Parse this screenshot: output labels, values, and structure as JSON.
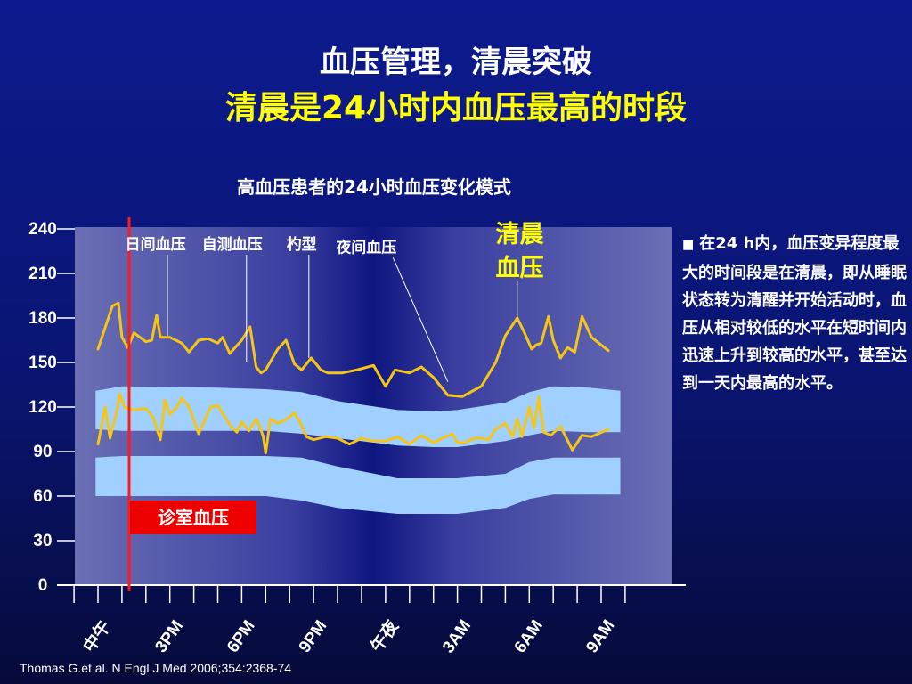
{
  "slide": {
    "title": "血压管理，清晨突破",
    "subtitle": "清晨是24小时内血压最高的时段",
    "citation": "Thomas G.et al. N Engl J Med 2006;354:2368-74"
  },
  "side_note": {
    "bullet": "■",
    "text": "在24 h内，血压变异程度最大的时间段是在清晨，即从睡眠状态转为清醒并开始活动时，血压从相对较低的水平在短时间内迅速上升到较高的水平，甚至达到一天内最高的水平。"
  },
  "chart_data": {
    "type": "line",
    "title": "高血压患者的24小时血压变化模式",
    "ylim": [
      0,
      240
    ],
    "y_ticks": [
      "240",
      "210",
      "180",
      "150",
      "120",
      "90",
      "60",
      "30",
      "0"
    ],
    "x_range_hours": [
      12,
      33
    ],
    "x_ticks": [
      {
        "hour": 12,
        "label": "中午"
      },
      {
        "hour": 15,
        "label": "3PM"
      },
      {
        "hour": 18,
        "label": "6PM"
      },
      {
        "hour": 21,
        "label": "9PM"
      },
      {
        "hour": 24,
        "label": "午夜"
      },
      {
        "hour": 27,
        "label": "3AM"
      },
      {
        "hour": 30,
        "label": "6AM"
      },
      {
        "hour": 33,
        "label": "9AM"
      }
    ],
    "series": [
      {
        "kind": "systolic",
        "x": [
          12.0,
          12.6,
          12.85,
          13.0,
          13.25,
          13.5,
          14.0,
          14.25,
          14.45,
          14.6,
          15.0,
          15.5,
          15.8,
          16.2,
          16.6,
          17.0,
          17.2,
          17.5,
          18.0,
          18.35,
          18.6,
          18.8,
          19.0,
          19.5,
          19.85,
          20.2,
          20.5,
          20.9,
          21.3,
          21.6,
          22.2,
          22.8,
          23.5,
          24.0,
          24.4,
          25.0,
          25.5,
          26.0,
          26.6,
          27.2,
          28.0,
          28.6,
          29.0,
          29.5,
          29.8,
          30.1,
          30.3,
          30.5,
          30.8,
          31.0,
          31.3,
          31.6,
          31.9,
          32.2,
          32.6,
          33.3
        ],
        "values": [
          159,
          188,
          190,
          167,
          160,
          170,
          164,
          165,
          182,
          167,
          167,
          163,
          157,
          165,
          166,
          163,
          167,
          156,
          165,
          174,
          147,
          143,
          145,
          159,
          165,
          149,
          145,
          153,
          145,
          143,
          143,
          145,
          148,
          134,
          145,
          143,
          147,
          140,
          128,
          127,
          134,
          150,
          168,
          180,
          170,
          159,
          162,
          163,
          181,
          165,
          153,
          160,
          157,
          181,
          167,
          158
        ]
      },
      {
        "kind": "diastolic",
        "x": [
          12.0,
          12.3,
          12.5,
          12.8,
          12.9,
          13.1,
          13.5,
          14.0,
          14.3,
          14.6,
          14.8,
          15.0,
          15.3,
          15.5,
          15.8,
          16.2,
          16.7,
          17.0,
          17.5,
          17.8,
          18.0,
          18.3,
          18.6,
          18.75,
          18.9,
          19.0,
          19.2,
          19.5,
          19.8,
          20.2,
          20.4,
          20.7,
          21.0,
          21.5,
          22.0,
          22.5,
          23.0,
          23.5,
          24.0,
          24.5,
          25.0,
          25.5,
          26.0,
          26.5,
          26.8,
          27.0,
          27.3,
          27.7,
          28.0,
          28.3,
          28.6,
          29.0,
          29.3,
          29.5,
          29.7,
          30.0,
          30.2,
          30.4,
          30.6,
          30.9,
          31.3,
          31.8,
          32.2,
          32.6,
          33.3
        ],
        "values": [
          95,
          120,
          99,
          118,
          129,
          120,
          118,
          119,
          113,
          98,
          125,
          115,
          120,
          126,
          120,
          102,
          120,
          121,
          108,
          103,
          110,
          104,
          112,
          107,
          100,
          89,
          112,
          109,
          111,
          116,
          111,
          100,
          98,
          100,
          99,
          95,
          99,
          97,
          97,
          100,
          95,
          101,
          96,
          100,
          102,
          96,
          96,
          99,
          99,
          98,
          105,
          109,
          100,
          112,
          100,
          120,
          106,
          127,
          103,
          101,
          107,
          91,
          101,
          100,
          105
        ]
      }
    ],
    "bands": [
      {
        "kind": "systolic-normal-range",
        "x": [
          11.9,
          13.0,
          17.0,
          19.0,
          20.5,
          22.0,
          24.5,
          26.0,
          27.0,
          29.0,
          30.0,
          31.0,
          32.5,
          33.8
        ],
        "upper": [
          131,
          134,
          133,
          132,
          130,
          124,
          118,
          117,
          118,
          123,
          130,
          134,
          133,
          131
        ],
        "lower": [
          105,
          104,
          104,
          104,
          102,
          99,
          94,
          93,
          93,
          97,
          101,
          104,
          103,
          103
        ]
      },
      {
        "kind": "diastolic-normal-range",
        "x": [
          11.9,
          13.0,
          17.0,
          19.0,
          20.5,
          22.0,
          24.5,
          26.0,
          27.0,
          29.0,
          30.0,
          31.0,
          32.5,
          33.8
        ],
        "upper": [
          86,
          87,
          87,
          87,
          86,
          80,
          72,
          72,
          72,
          75,
          83,
          86,
          86,
          86
        ],
        "lower": [
          60,
          60,
          60,
          60,
          57,
          52,
          48,
          48,
          48,
          52,
          58,
          61,
          61,
          61
        ]
      }
    ],
    "annotations": [
      {
        "text": "日间血压",
        "label_x": 14.4,
        "label_y": 231,
        "point_x": 14.9,
        "point_y": 168
      },
      {
        "text": "自测血压",
        "label_x": 17.6,
        "label_y": 231,
        "point_x": 18.2,
        "point_y": 150
      },
      {
        "text": "杓型",
        "label_x": 20.5,
        "label_y": 231,
        "point_x": 20.8,
        "point_y": 153
      },
      {
        "text": "夜间血压",
        "label_x": 23.2,
        "label_y": 229,
        "point_x": 26.6,
        "point_y": 137
      },
      {
        "text": "清晨血压",
        "label_x": 29.6,
        "label_y": 237,
        "point_x": 29.5,
        "point_y": 180
      }
    ],
    "office_bp_label": "诊室血压",
    "office_bp_marker_hour": 13.3
  }
}
